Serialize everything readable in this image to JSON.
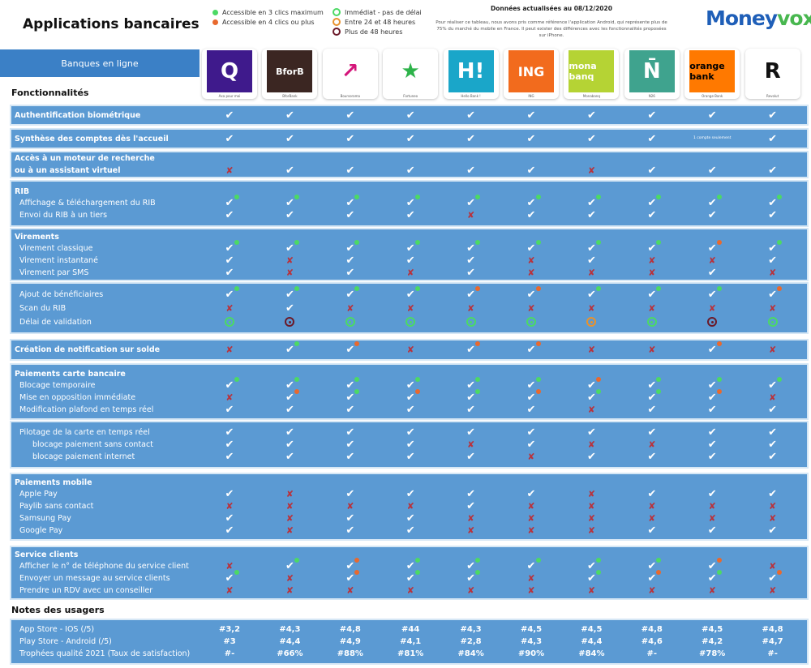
{
  "header": {
    "title": "Applications bancaires",
    "updated": "Données actualisées au 08/12/2020",
    "note": "Pour réaliser ce tableau, nous avons pris comme référence l'application Android, qui représente plus de 75% du marché du mobile en France. Il peut exister des différences avec les fonctionnalités proposées sur iPhone.",
    "brand_a": "Money",
    "brand_b": "vox"
  },
  "legend": {
    "dots": [
      {
        "label": "Accessible en 3 clics maximum",
        "color": "#4cd964"
      },
      {
        "label": "Accessible en 4 clics ou plus",
        "color": "#e8692e"
      }
    ],
    "clocks": [
      {
        "label": "Immédiat - pas de délai",
        "color": "#4cd964"
      },
      {
        "label": "Entre 24 et 48 heures",
        "color": "#e8922e"
      },
      {
        "label": "Plus de 48 heures",
        "color": "#6b1a2a"
      }
    ]
  },
  "banner": "Banques en ligne",
  "features_heading": "Fonctionnalités",
  "notes_heading": "Notes des usagers",
  "colors": {
    "check": "#ffffff",
    "cross": "#b8323c",
    "green": "#4cd964",
    "orange": "#e8692e",
    "clock_orange": "#e8922e",
    "clock_dark": "#6b1a2a",
    "block": "#5b9ad3",
    "banner": "#3b80c6"
  },
  "banks": [
    {
      "name": "Axa pour moi",
      "logo_text": "Q",
      "bg": "#3f1a8c",
      "fg": "#ffffff"
    },
    {
      "name": "BforBank",
      "logo_text": "BforB",
      "bg": "#3b2622",
      "fg": "#ffffff"
    },
    {
      "name": "Boursorama",
      "logo_text": "↗",
      "bg": "#ffffff",
      "fg": "#d4157a"
    },
    {
      "name": "Fortuneo",
      "logo_text": "★",
      "bg": "#ffffff",
      "fg": "#2db34a"
    },
    {
      "name": "Hello Bank !",
      "logo_text": "H!",
      "bg": "#1aa6c9",
      "fg": "#ffffff"
    },
    {
      "name": "ING",
      "logo_text": "ING",
      "bg": "#f26b1d",
      "fg": "#ffffff"
    },
    {
      "name": "Monabanq",
      "logo_text": "mona banq",
      "bg": "#b5d334",
      "fg": "#ffffff"
    },
    {
      "name": "N26",
      "logo_text": "N̄",
      "bg": "#3fa38e",
      "fg": "#ffffff"
    },
    {
      "name": "Orange Bank",
      "logo_text": "orange bank",
      "bg": "#ff7900",
      "fg": "#000000"
    },
    {
      "name": "Revolut",
      "logo_text": "R",
      "bg": "#ffffff",
      "fg": "#111111"
    }
  ],
  "blocks": [
    {
      "rows": [
        {
          "label": "Authentification biométrique",
          "style": "bold",
          "cells": [
            "v",
            "v",
            "v",
            "v",
            "v",
            "v",
            "v",
            "v",
            "v",
            "v"
          ]
        }
      ]
    },
    {
      "rows": [
        {
          "label": "Synthèse des comptes dès l'accueil",
          "style": "bold",
          "cells": [
            "v",
            "v",
            "v",
            "v",
            "v",
            "v",
            "v",
            "v",
            "1 compte seulement",
            "v"
          ]
        }
      ]
    },
    {
      "rows": [
        {
          "label": "Accès à un moteur de recherche",
          "style": "bold",
          "cells": []
        },
        {
          "label": "ou à un assistant virtuel",
          "style": "bold",
          "cells": [
            "x",
            "v",
            "v",
            "v",
            "v",
            "v",
            "x",
            "v",
            "v",
            "v"
          ]
        }
      ]
    },
    {
      "rows": [
        {
          "label": "RIB",
          "style": "head",
          "cells": []
        },
        {
          "label": "Affichage & téléchargement  du RIB",
          "style": "ind",
          "cells": [
            "vg",
            "vg",
            "vg",
            "vg",
            "vg",
            "vg",
            "vg",
            "vg",
            "vg",
            "vg"
          ]
        },
        {
          "label": "Envoi du RIB à un tiers",
          "style": "ind",
          "cells": [
            "v",
            "v",
            "v",
            "v",
            "x",
            "v",
            "v",
            "v",
            "v",
            "v"
          ]
        }
      ]
    },
    {
      "rows": [
        {
          "label": "Virements",
          "style": "head",
          "cells": []
        },
        {
          "label": "Virement classique",
          "style": "ind",
          "cells": [
            "vg",
            "vg",
            "vg",
            "vg",
            "vg",
            "vg",
            "vg",
            "vg",
            "vo",
            "vg"
          ]
        },
        {
          "label": "Virement instantané",
          "style": "ind",
          "cells": [
            "v",
            "x",
            "v",
            "v",
            "v",
            "x",
            "v",
            "x",
            "x",
            "v"
          ]
        },
        {
          "label": "Virement par SMS",
          "style": "ind",
          "cells": [
            "v",
            "x",
            "v",
            "x",
            "v",
            "x",
            "x",
            "x",
            "v",
            "x"
          ]
        }
      ]
    },
    {
      "rows": [
        {
          "label": "Ajout de bénéficiaires",
          "style": "ind",
          "cells": [
            "vg",
            "vg",
            "vg",
            "vg",
            "vo",
            "vo",
            "vg",
            "vg",
            "vg",
            "vo"
          ]
        },
        {
          "label": "Scan du RIB",
          "style": "ind",
          "cells": [
            "x",
            "v",
            "x",
            "x",
            "x",
            "x",
            "x",
            "x",
            "x",
            "x"
          ]
        },
        {
          "label": "Délai de validation",
          "style": "ind",
          "cells": [
            "cg",
            "cd",
            "cg",
            "cg",
            "cg",
            "cg",
            "co",
            "cg",
            "cd",
            "cg"
          ]
        }
      ]
    },
    {
      "rows": [
        {
          "label": "Création de notification sur solde",
          "style": "bold",
          "cells": [
            "x",
            "vg",
            "vo",
            "x",
            "vo",
            "vo",
            "x",
            "x",
            "vo",
            "x"
          ]
        }
      ]
    },
    {
      "rows": [
        {
          "label": "Paiements carte bancaire",
          "style": "head",
          "cells": []
        },
        {
          "label": "Blocage temporaire",
          "style": "ind",
          "cells": [
            "vg",
            "vg",
            "vg",
            "vg",
            "vg",
            "vg",
            "vo",
            "vg",
            "vg",
            "vg"
          ]
        },
        {
          "label": "Mise en opposition immédiate",
          "style": "ind",
          "cells": [
            "x",
            "vo",
            "vg",
            "vo",
            "vg",
            "vo",
            "vg",
            "vg",
            "vo",
            "x"
          ]
        },
        {
          "label": "Modification plafond en temps réel",
          "style": "ind",
          "cells": [
            "v",
            "v",
            "v",
            "v",
            "v",
            "v",
            "x",
            "v",
            "v",
            "v"
          ]
        }
      ]
    },
    {
      "rows": [
        {
          "label": "Pilotage de la carte en temps réel",
          "style": "ind",
          "cells": [
            "v",
            "v",
            "v",
            "v",
            "v",
            "v",
            "v",
            "v",
            "v",
            "v"
          ]
        },
        {
          "label": "blocage paiement sans contact",
          "style": "ind2",
          "cells": [
            "v",
            "v",
            "v",
            "v",
            "x",
            "v",
            "x",
            "x",
            "v",
            "v"
          ]
        },
        {
          "label": "blocage paiement internet",
          "style": "ind2",
          "cells": [
            "v",
            "v",
            "v",
            "v",
            "v",
            "x",
            "v",
            "v",
            "v",
            "v"
          ]
        }
      ]
    },
    {
      "rows": [
        {
          "label": "Paiements mobile",
          "style": "head",
          "cells": []
        },
        {
          "label": "Apple Pay",
          "style": "ind",
          "cells": [
            "v",
            "x",
            "v",
            "v",
            "v",
            "v",
            "x",
            "v",
            "v",
            "v"
          ]
        },
        {
          "label": "Paylib sans contact",
          "style": "ind",
          "cells": [
            "x",
            "x",
            "x",
            "x",
            "v",
            "x",
            "x",
            "x",
            "x",
            "x"
          ]
        },
        {
          "label": "Samsung Pay",
          "style": "ind",
          "cells": [
            "v",
            "x",
            "v",
            "v",
            "x",
            "x",
            "x",
            "x",
            "x",
            "x"
          ]
        },
        {
          "label": "Google Pay",
          "style": "ind",
          "cells": [
            "v",
            "x",
            "v",
            "v",
            "x",
            "x",
            "x",
            "v",
            "v",
            "v"
          ]
        }
      ]
    },
    {
      "rows": [
        {
          "label": "Service clients",
          "style": "head",
          "cells": []
        },
        {
          "label": "Afficher le n° de téléphone du service client",
          "style": "ind",
          "cells": [
            "x",
            "vg",
            "vo",
            "vg",
            "vg",
            "vg",
            "vg",
            "vg",
            "vo",
            "x"
          ]
        },
        {
          "label": "Envoyer un message au service clients",
          "style": "ind",
          "cells": [
            "vg",
            "x",
            "vo",
            "vg",
            "vg",
            "x",
            "vg",
            "vo",
            "vg",
            "vo"
          ]
        },
        {
          "label": "Prendre un RDV avec un conseiller",
          "style": "ind",
          "cells": [
            "x",
            "x",
            "x",
            "x",
            "x",
            "x",
            "x",
            "x",
            "x",
            "x"
          ]
        }
      ]
    },
    {
      "rows": [
        {
          "label": "App Store - IOS (/5)",
          "style": "ind",
          "cells": [
            "#3,2",
            "#4,3",
            "#4,8",
            "#44",
            "#4,3",
            "#4,5",
            "#4,5",
            "#4,8",
            "#4,5",
            "#4,8"
          ]
        },
        {
          "label": "Play Store - Android (/5)",
          "style": "ind",
          "cells": [
            "#3",
            "#4,4",
            "#4,9",
            "#4,1",
            "#2,8",
            "#4,3",
            "#4,4",
            "#4,6",
            "#4,2",
            "#4,7"
          ]
        },
        {
          "label": "Trophées qualité 2021 (Taux de satisfaction)",
          "style": "ind",
          "cells": [
            "#-",
            "#66%",
            "#88%",
            "#81%",
            "#84%",
            "#90%",
            "#84%",
            "#-",
            "#78%",
            "#-"
          ]
        }
      ]
    }
  ]
}
